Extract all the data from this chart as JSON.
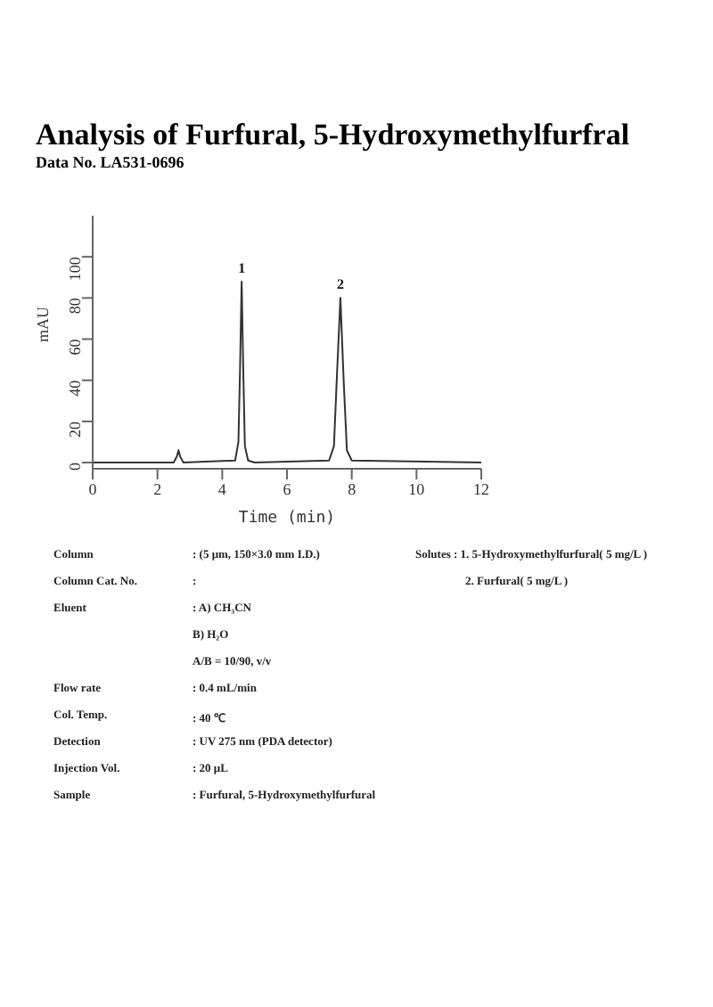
{
  "chart_data": {
    "type": "line",
    "title": "Analysis of Furfural, 5-Hydroxymethylfurfral",
    "subtitle": "Data No. LA531-0696",
    "xlabel": "Time (min)",
    "ylabel": "mAU",
    "x": [
      0,
      2.5,
      2.6,
      2.65,
      2.7,
      2.8,
      4.4,
      4.5,
      4.55,
      4.6,
      4.65,
      4.7,
      4.8,
      5.0,
      7.3,
      7.45,
      7.55,
      7.65,
      7.75,
      7.85,
      8.0,
      12
    ],
    "series": [
      {
        "color": "#333333",
        "values": [
          0,
          0,
          3,
          6,
          3,
          0,
          1,
          10,
          45,
          88,
          45,
          8,
          1,
          0,
          1,
          8,
          45,
          80,
          40,
          6,
          1,
          0
        ]
      }
    ],
    "xlim": [
      0,
      12
    ],
    "xticks": [
      0,
      2,
      4,
      6,
      8,
      10,
      12
    ],
    "ylim": [
      -3,
      120
    ],
    "yticks": [
      0,
      20,
      40,
      60,
      80,
      100
    ],
    "grid": false,
    "legend": false,
    "marker": "none",
    "line_style": "solid",
    "annotations": [
      {
        "text": "1",
        "x": 4.6,
        "y": 88
      },
      {
        "text": "2",
        "x": 7.65,
        "y": 80
      },
      "Column : (5 μm, 150×3.0 mm I.D.)",
      "Column Cat. No. :",
      "Eluent : A) CH₃CN",
      "B) H₂O",
      "A/B = 10/90, v/v",
      "Flow rate : 0.4 mL/min",
      "Col. Temp. : 40 ℃",
      "Detection : UV 275 nm (PDA detector)",
      "Injection Vol. : 20 μL",
      "Sample : Furfural, 5-Hydroxymethylfurfural",
      "Solutes : 1. 5-Hydroxymethylfurfural( 5 mg/L )",
      "2. Furfural( 5 mg/L )"
    ]
  }
}
